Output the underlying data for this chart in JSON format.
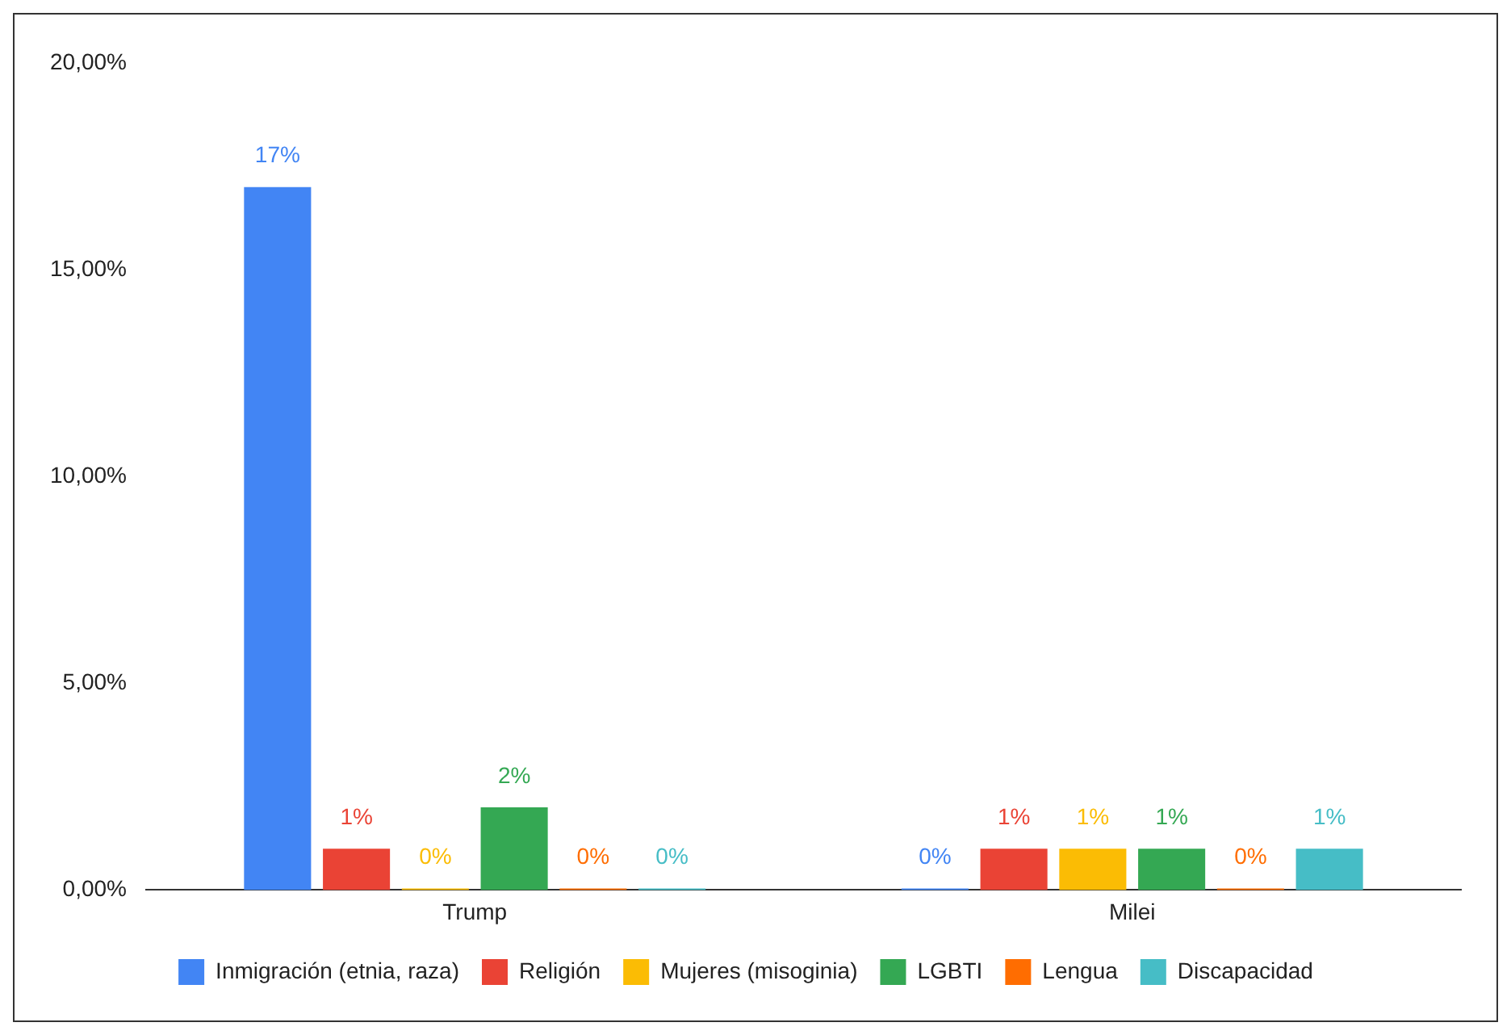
{
  "chart_data": {
    "type": "bar",
    "categories": [
      "Trump",
      "Milei"
    ],
    "series": [
      {
        "name": "Inmigración (etnia, raza)",
        "color": "#4285f4",
        "values": [
          17,
          0
        ],
        "value_labels": [
          "17%",
          "0%"
        ]
      },
      {
        "name": "Religión",
        "color": "#ea4335",
        "values": [
          1,
          1
        ],
        "value_labels": [
          "1%",
          "1%"
        ]
      },
      {
        "name": "Mujeres (misoginia)",
        "color": "#fbbc04",
        "values": [
          0,
          1
        ],
        "value_labels": [
          "0%",
          "1%"
        ]
      },
      {
        "name": "LGBTI",
        "color": "#34a853",
        "values": [
          2,
          1
        ],
        "value_labels": [
          "2%",
          "1%"
        ]
      },
      {
        "name": "Lengua",
        "color": "#ff6d01",
        "values": [
          0,
          0
        ],
        "value_labels": [
          "0%",
          "0%"
        ]
      },
      {
        "name": "Discapacidad",
        "color": "#46bdc6",
        "values": [
          0,
          1
        ],
        "value_labels": [
          "0%",
          "1%"
        ]
      }
    ],
    "ylim": [
      0,
      20
    ],
    "yticks": [
      {
        "value": 0,
        "label": "0,00%"
      },
      {
        "value": 5,
        "label": "5,00%"
      },
      {
        "value": 10,
        "label": "10,00%"
      },
      {
        "value": 15,
        "label": "15,00%"
      },
      {
        "value": 20,
        "label": "20,00%"
      }
    ],
    "grid": false,
    "legend": "bottom"
  }
}
